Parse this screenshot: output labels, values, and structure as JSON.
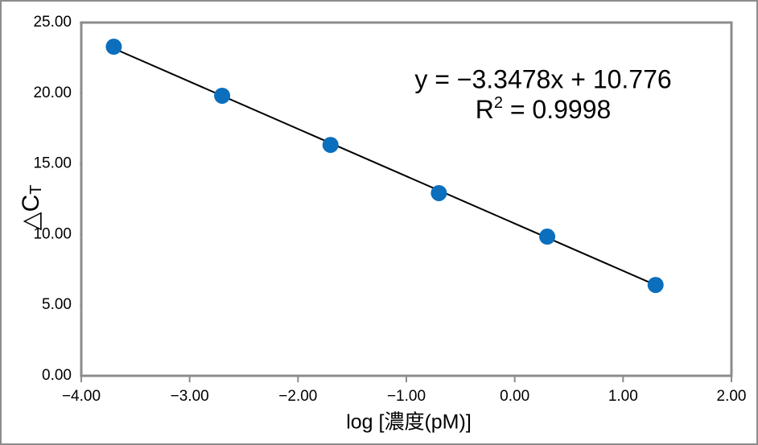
{
  "chart_data": {
    "type": "scatter",
    "x_label": "log [濃度(pM)]",
    "y_label": "△C",
    "y_label_sub": "T",
    "series": [
      {
        "color": "#0b6fbd",
        "x": [
          -3.7,
          -2.7,
          -1.7,
          -0.7,
          0.3,
          1.3
        ],
        "values": [
          23.29,
          19.82,
          16.34,
          12.93,
          9.85,
          6.43
        ]
      }
    ],
    "trendline": {
      "slope": -3.3478,
      "intercept": 10.776,
      "color": "#000000",
      "equation": "y = −3.3478x + 10.776",
      "r2_label": "R",
      "r2_sup": "2",
      "r2_text": " = 0.9998"
    },
    "xlim": [
      -4,
      2
    ],
    "xticks": [
      {
        "value": -4,
        "label": "−4.00"
      },
      {
        "value": -3,
        "label": "−3.00"
      },
      {
        "value": -2,
        "label": "−2.00"
      },
      {
        "value": -1,
        "label": "−1.00"
      },
      {
        "value": 0,
        "label": "0.00"
      },
      {
        "value": 1,
        "label": "1.00"
      },
      {
        "value": 2,
        "label": "2.00"
      }
    ],
    "ylim": [
      0,
      25
    ],
    "yticks": [
      {
        "value": 0,
        "label": "0.00"
      },
      {
        "value": 5,
        "label": "5.00"
      },
      {
        "value": 10,
        "label": "10.00"
      },
      {
        "value": 15,
        "label": "15.00"
      },
      {
        "value": 20,
        "label": "20.00"
      },
      {
        "value": 25,
        "label": "25.00"
      }
    ]
  }
}
